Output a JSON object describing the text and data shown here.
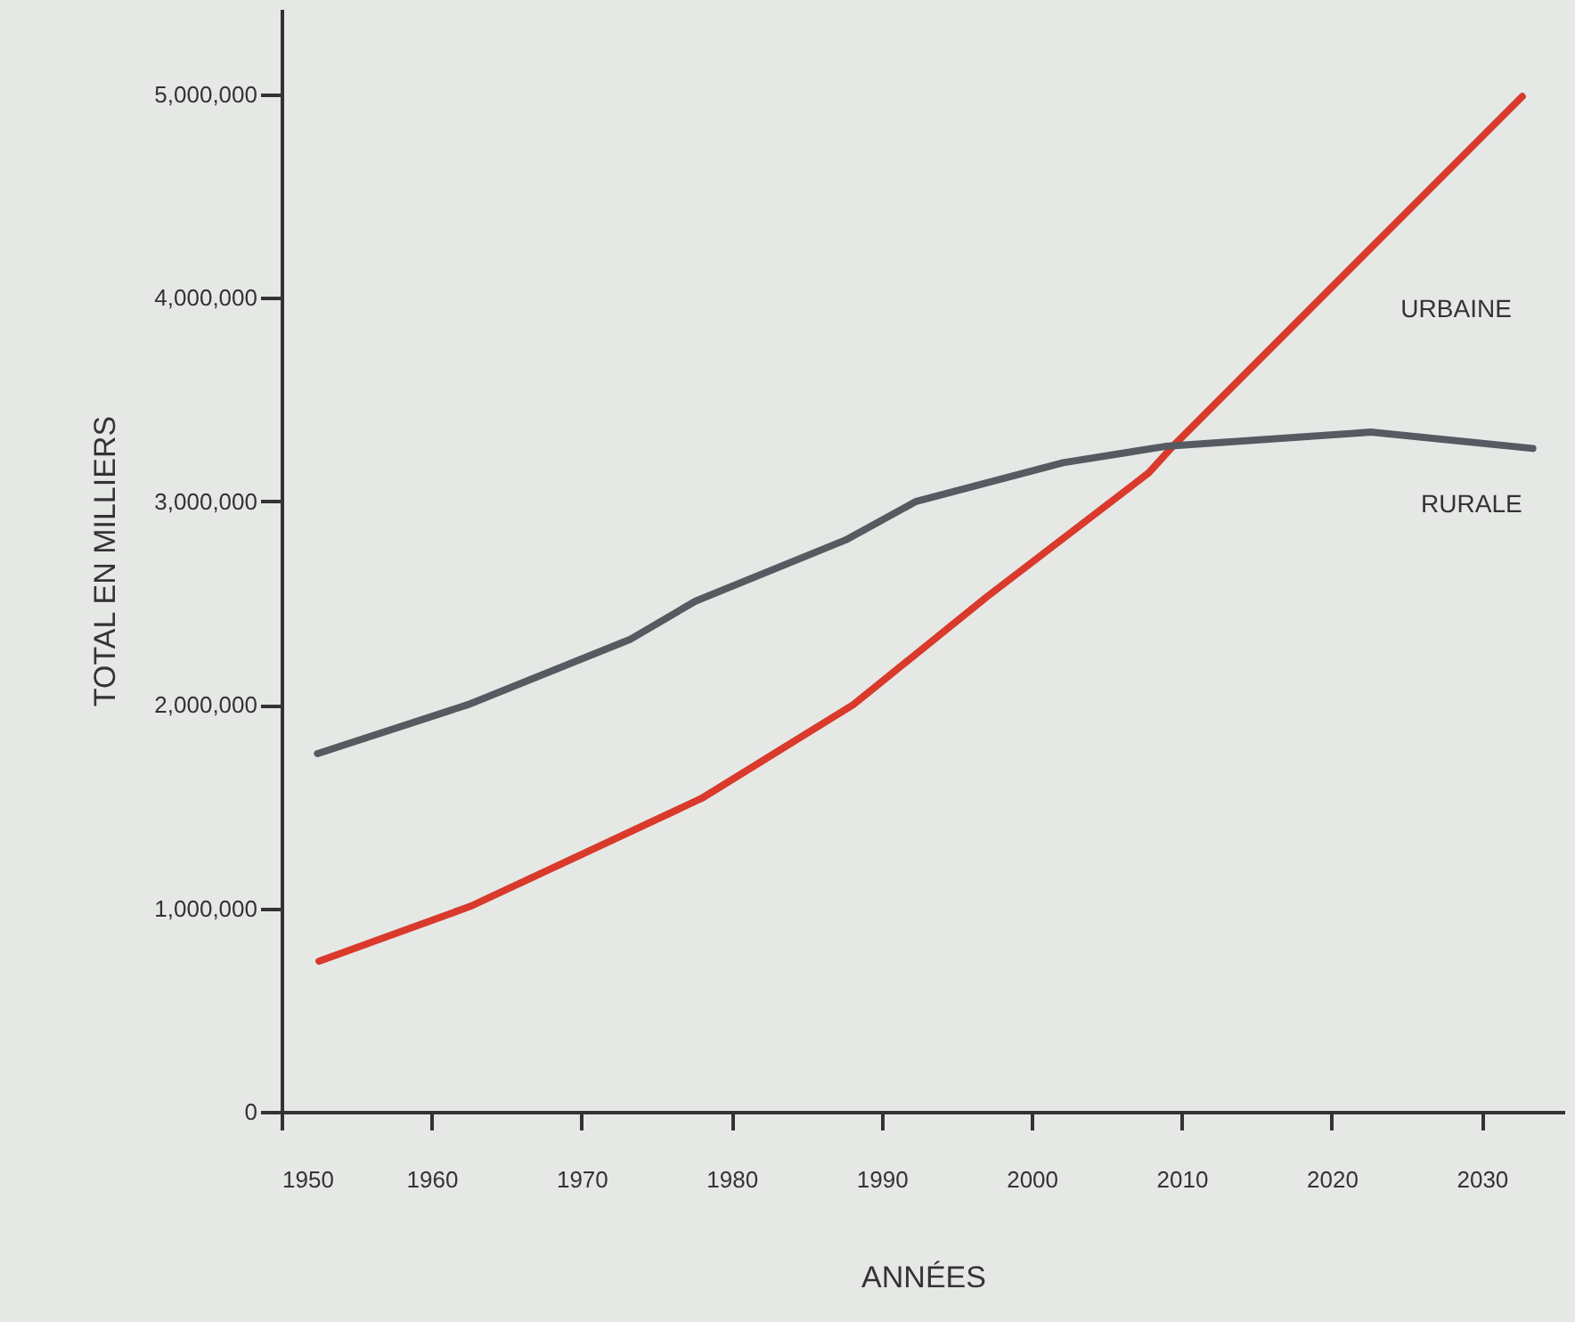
{
  "chart_data": {
    "type": "line",
    "xlabel": "ANNÉES",
    "ylabel": "TOTAL EN MILLIERS",
    "xlim": [
      1950,
      2035.5
    ],
    "xticks": [
      1950,
      1960,
      1970,
      1980,
      1990,
      2000,
      2010,
      2020,
      2030
    ],
    "ylim": [
      0,
      5420000
    ],
    "yticks": [
      0,
      {
        "value": 1000000,
        "label": "1,000,000"
      },
      {
        "value": 2000000,
        "label": "2,000,000"
      },
      {
        "value": 3000000,
        "label": "3,000,000"
      },
      {
        "value": 4000000,
        "label": "4,000,000"
      },
      {
        "value": 5000000,
        "label": "5,000,000"
      }
    ],
    "grid": false,
    "legend": false,
    "marker": "none",
    "line_style": "solid",
    "series": [
      {
        "name": "URBAINE",
        "color": "#d93a2b",
        "x": [
          1952.5,
          1962.6,
          1978,
          1988.1,
          1997,
          2007.8,
          2009.4,
          2032.7
        ],
        "values": [
          740000,
          1010000,
          1540000,
          2000000,
          2530000,
          3140000,
          3270000,
          4990000
        ]
      },
      {
        "name": "RURALE",
        "color": "#555b60",
        "x": [
          1952.4,
          1962.4,
          1973.2,
          1977.6,
          1987.6,
          1992.3,
          2002.1,
          2008.9,
          2022.6,
          2033.4
        ],
        "values": [
          1760000,
          2000000,
          2320000,
          2510000,
          2810000,
          3000000,
          3190000,
          3270000,
          3340000,
          3260000
        ]
      }
    ]
  }
}
